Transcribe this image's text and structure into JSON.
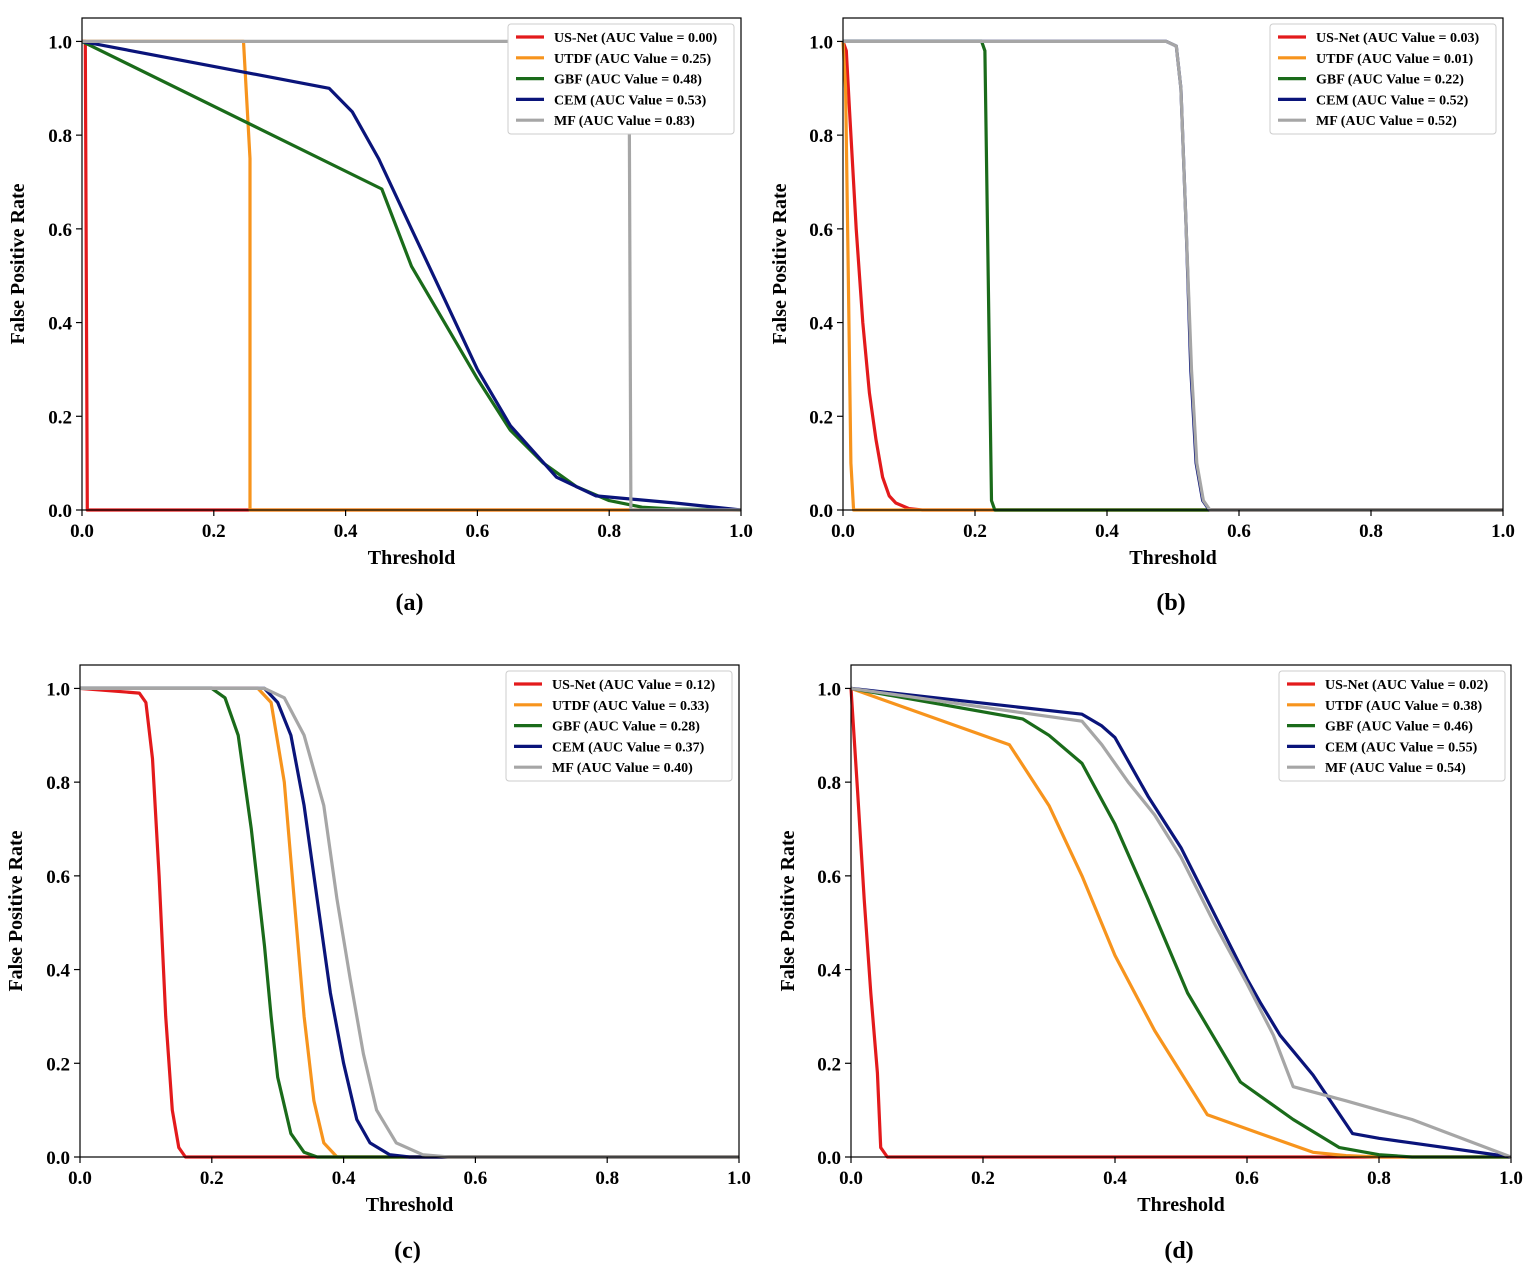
{
  "chart_data": [
    {
      "type": "line",
      "caption": "(a)",
      "xlabel": "Threshold",
      "ylabel": "False Positive Rate",
      "xlim": [
        0,
        1
      ],
      "ylim": [
        0,
        1.05
      ],
      "xticks": [
        "0.0",
        "0.2",
        "0.4",
        "0.6",
        "0.8",
        "1.0"
      ],
      "yticks": [
        "0.0",
        "0.2",
        "0.4",
        "0.6",
        "0.8",
        "1.0"
      ],
      "grid": false,
      "legend_position": "top-right",
      "series": [
        {
          "name": "US-Net (AUC Value = 0.00)",
          "color": "#e31a1c",
          "points": [
            [
              0,
              1
            ],
            [
              0.005,
              1
            ],
            [
              0.008,
              0
            ],
            [
              1,
              0
            ]
          ]
        },
        {
          "name": "UTDF (AUC Value = 0.25)",
          "color": "#f7941d",
          "points": [
            [
              0,
              1
            ],
            [
              0.245,
              1
            ],
            [
              0.255,
              0.75
            ],
            [
              0.255,
              0
            ],
            [
              1,
              0
            ]
          ]
        },
        {
          "name": "GBF (AUC Value = 0.48)",
          "color": "#1a6b1a",
          "points": [
            [
              0,
              1
            ],
            [
              0.455,
              0.685
            ],
            [
              0.5,
              0.52
            ],
            [
              0.55,
              0.4
            ],
            [
              0.6,
              0.28
            ],
            [
              0.65,
              0.17
            ],
            [
              0.7,
              0.1
            ],
            [
              0.75,
              0.05
            ],
            [
              0.8,
              0.02
            ],
            [
              0.85,
              0.006
            ],
            [
              0.9,
              0.002
            ],
            [
              1,
              0
            ]
          ]
        },
        {
          "name": "CEM (AUC Value = 0.53)",
          "color": "#0a147a",
          "points": [
            [
              0,
              1
            ],
            [
              0.375,
              0.9
            ],
            [
              0.41,
              0.85
            ],
            [
              0.45,
              0.75
            ],
            [
              0.5,
              0.6
            ],
            [
              0.55,
              0.45
            ],
            [
              0.6,
              0.3
            ],
            [
              0.65,
              0.18
            ],
            [
              0.72,
              0.07
            ],
            [
              0.78,
              0.03
            ],
            [
              0.9,
              0.015
            ],
            [
              1,
              0
            ]
          ]
        },
        {
          "name": "MF (AUC Value = 0.83)",
          "color": "#a6a6a6",
          "points": [
            [
              0,
              1
            ],
            [
              0.83,
              1
            ],
            [
              0.833,
              0
            ],
            [
              1,
              0
            ]
          ]
        }
      ]
    },
    {
      "type": "line",
      "caption": "(b)",
      "xlabel": "Threshold",
      "ylabel": "False Positive Rate",
      "xlim": [
        0,
        1
      ],
      "ylim": [
        0,
        1.05
      ],
      "xticks": [
        "0.0",
        "0.2",
        "0.4",
        "0.6",
        "0.8",
        "1.0"
      ],
      "yticks": [
        "0.0",
        "0.2",
        "0.4",
        "0.6",
        "0.8",
        "1.0"
      ],
      "grid": false,
      "legend_position": "top-right",
      "series": [
        {
          "name": "US-Net (AUC Value = 0.03)",
          "color": "#e31a1c",
          "points": [
            [
              0,
              1
            ],
            [
              0.005,
              0.98
            ],
            [
              0.01,
              0.85
            ],
            [
              0.02,
              0.6
            ],
            [
              0.03,
              0.4
            ],
            [
              0.04,
              0.25
            ],
            [
              0.05,
              0.15
            ],
            [
              0.06,
              0.07
            ],
            [
              0.07,
              0.03
            ],
            [
              0.08,
              0.015
            ],
            [
              0.1,
              0.003
            ],
            [
              0.12,
              0
            ],
            [
              1,
              0
            ]
          ]
        },
        {
          "name": "UTDF (AUC Value = 0.01)",
          "color": "#f7941d",
          "points": [
            [
              0,
              1
            ],
            [
              0.004,
              0.9
            ],
            [
              0.008,
              0.5
            ],
            [
              0.012,
              0.1
            ],
            [
              0.016,
              0
            ],
            [
              1,
              0
            ]
          ]
        },
        {
          "name": "GBF (AUC Value = 0.22)",
          "color": "#1a6b1a",
          "points": [
            [
              0,
              1
            ],
            [
              0.21,
              1
            ],
            [
              0.215,
              0.98
            ],
            [
              0.22,
              0.5
            ],
            [
              0.225,
              0.02
            ],
            [
              0.23,
              0
            ],
            [
              1,
              0
            ]
          ]
        },
        {
          "name": "CEM (AUC Value = 0.52)",
          "color": "#0a147a",
          "points": [
            [
              0,
              1
            ],
            [
              0.49,
              1
            ],
            [
              0.505,
              0.99
            ],
            [
              0.512,
              0.9
            ],
            [
              0.52,
              0.6
            ],
            [
              0.527,
              0.3
            ],
            [
              0.535,
              0.1
            ],
            [
              0.545,
              0.02
            ],
            [
              0.555,
              0
            ],
            [
              1,
              0
            ]
          ]
        },
        {
          "name": "MF (AUC Value = 0.52)",
          "color": "#a6a6a6",
          "points": [
            [
              0,
              1
            ],
            [
              0.49,
              1
            ],
            [
              0.505,
              0.99
            ],
            [
              0.512,
              0.9
            ],
            [
              0.52,
              0.6
            ],
            [
              0.528,
              0.3
            ],
            [
              0.536,
              0.1
            ],
            [
              0.546,
              0.02
            ],
            [
              0.556,
              0
            ],
            [
              1,
              0
            ]
          ]
        }
      ]
    },
    {
      "type": "line",
      "caption": "(c)",
      "xlabel": "Threshold",
      "ylabel": "False Positive Rate",
      "xlim": [
        0,
        1
      ],
      "ylim": [
        0,
        1.05
      ],
      "xticks": [
        "0.0",
        "0.2",
        "0.4",
        "0.6",
        "0.8",
        "1.0"
      ],
      "yticks": [
        "0.0",
        "0.2",
        "0.4",
        "0.6",
        "0.8",
        "1.0"
      ],
      "grid": false,
      "legend_position": "top-right",
      "series": [
        {
          "name": "US-Net (AUC Value = 0.12)",
          "color": "#e31a1c",
          "points": [
            [
              0,
              1
            ],
            [
              0.09,
              0.99
            ],
            [
              0.1,
              0.97
            ],
            [
              0.11,
              0.85
            ],
            [
              0.12,
              0.6
            ],
            [
              0.13,
              0.3
            ],
            [
              0.14,
              0.1
            ],
            [
              0.15,
              0.02
            ],
            [
              0.16,
              0
            ],
            [
              1,
              0
            ]
          ]
        },
        {
          "name": "UTDF (AUC Value = 0.33)",
          "color": "#f7941d",
          "points": [
            [
              0,
              1
            ],
            [
              0.27,
              1
            ],
            [
              0.29,
              0.97
            ],
            [
              0.31,
              0.8
            ],
            [
              0.325,
              0.55
            ],
            [
              0.34,
              0.3
            ],
            [
              0.355,
              0.12
            ],
            [
              0.37,
              0.03
            ],
            [
              0.39,
              0
            ],
            [
              1,
              0
            ]
          ]
        },
        {
          "name": "GBF (AUC Value = 0.28)",
          "color": "#1a6b1a",
          "points": [
            [
              0,
              1
            ],
            [
              0.2,
              1
            ],
            [
              0.22,
              0.98
            ],
            [
              0.24,
              0.9
            ],
            [
              0.26,
              0.7
            ],
            [
              0.28,
              0.45
            ],
            [
              0.29,
              0.3
            ],
            [
              0.3,
              0.17
            ],
            [
              0.32,
              0.05
            ],
            [
              0.34,
              0.01
            ],
            [
              0.36,
              0
            ],
            [
              1,
              0
            ]
          ]
        },
        {
          "name": "CEM (AUC Value = 0.37)",
          "color": "#0a147a",
          "points": [
            [
              0,
              1
            ],
            [
              0.28,
              1
            ],
            [
              0.3,
              0.97
            ],
            [
              0.32,
              0.9
            ],
            [
              0.34,
              0.75
            ],
            [
              0.36,
              0.55
            ],
            [
              0.38,
              0.35
            ],
            [
              0.4,
              0.2
            ],
            [
              0.42,
              0.08
            ],
            [
              0.44,
              0.03
            ],
            [
              0.47,
              0.005
            ],
            [
              0.5,
              0
            ],
            [
              1,
              0
            ]
          ]
        },
        {
          "name": "MF (AUC Value = 0.40)",
          "color": "#a6a6a6",
          "points": [
            [
              0,
              1
            ],
            [
              0.28,
              1
            ],
            [
              0.31,
              0.98
            ],
            [
              0.34,
              0.9
            ],
            [
              0.37,
              0.75
            ],
            [
              0.39,
              0.55
            ],
            [
              0.41,
              0.38
            ],
            [
              0.43,
              0.22
            ],
            [
              0.45,
              0.1
            ],
            [
              0.48,
              0.03
            ],
            [
              0.52,
              0.005
            ],
            [
              0.56,
              0
            ],
            [
              1,
              0
            ]
          ]
        }
      ]
    },
    {
      "type": "line",
      "caption": "(d)",
      "xlabel": "Threshold",
      "ylabel": "False Positive Rate",
      "xlim": [
        0,
        1
      ],
      "ylim": [
        0,
        1.05
      ],
      "xticks": [
        "0.0",
        "0.2",
        "0.4",
        "0.6",
        "0.8",
        "1.0"
      ],
      "yticks": [
        "0.0",
        "0.2",
        "0.4",
        "0.6",
        "0.8",
        "1.0"
      ],
      "grid": false,
      "legend_position": "top-right",
      "series": [
        {
          "name": "US-Net (AUC Value = 0.02)",
          "color": "#e31a1c",
          "points": [
            [
              0,
              1
            ],
            [
              0.01,
              0.78
            ],
            [
              0.02,
              0.55
            ],
            [
              0.03,
              0.35
            ],
            [
              0.04,
              0.18
            ],
            [
              0.045,
              0.02
            ],
            [
              0.055,
              0
            ],
            [
              1,
              0
            ]
          ]
        },
        {
          "name": "UTDF (AUC Value = 0.38)",
          "color": "#f7941d",
          "points": [
            [
              0,
              1
            ],
            [
              0.24,
              0.88
            ],
            [
              0.3,
              0.75
            ],
            [
              0.35,
              0.6
            ],
            [
              0.4,
              0.43
            ],
            [
              0.46,
              0.27
            ],
            [
              0.54,
              0.09
            ],
            [
              0.62,
              0.05
            ],
            [
              0.7,
              0.01
            ],
            [
              0.75,
              0.003
            ],
            [
              0.8,
              0
            ],
            [
              1,
              0
            ]
          ]
        },
        {
          "name": "GBF (AUC Value = 0.46)",
          "color": "#1a6b1a",
          "points": [
            [
              0,
              1
            ],
            [
              0.26,
              0.935
            ],
            [
              0.3,
              0.9
            ],
            [
              0.35,
              0.84
            ],
            [
              0.4,
              0.71
            ],
            [
              0.45,
              0.55
            ],
            [
              0.51,
              0.35
            ],
            [
              0.59,
              0.16
            ],
            [
              0.67,
              0.08
            ],
            [
              0.74,
              0.02
            ],
            [
              0.8,
              0.005
            ],
            [
              0.85,
              0
            ],
            [
              1,
              0
            ]
          ]
        },
        {
          "name": "CEM (AUC Value = 0.55)",
          "color": "#0a147a",
          "points": [
            [
              0,
              1
            ],
            [
              0.35,
              0.945
            ],
            [
              0.38,
              0.92
            ],
            [
              0.4,
              0.895
            ],
            [
              0.45,
              0.77
            ],
            [
              0.5,
              0.66
            ],
            [
              0.55,
              0.52
            ],
            [
              0.6,
              0.38
            ],
            [
              0.62,
              0.33
            ],
            [
              0.65,
              0.26
            ],
            [
              0.7,
              0.175
            ],
            [
              0.76,
              0.05
            ],
            [
              0.8,
              0.04
            ],
            [
              0.9,
              0.02
            ],
            [
              1,
              0
            ]
          ]
        },
        {
          "name": "MF (AUC Value = 0.54)",
          "color": "#a6a6a6",
          "points": [
            [
              0,
              1
            ],
            [
              0.35,
              0.93
            ],
            [
              0.38,
              0.88
            ],
            [
              0.42,
              0.8
            ],
            [
              0.46,
              0.73
            ],
            [
              0.5,
              0.64
            ],
            [
              0.55,
              0.5
            ],
            [
              0.6,
              0.37
            ],
            [
              0.64,
              0.26
            ],
            [
              0.67,
              0.15
            ],
            [
              0.75,
              0.12
            ],
            [
              0.85,
              0.08
            ],
            [
              1,
              0
            ]
          ]
        }
      ]
    }
  ]
}
